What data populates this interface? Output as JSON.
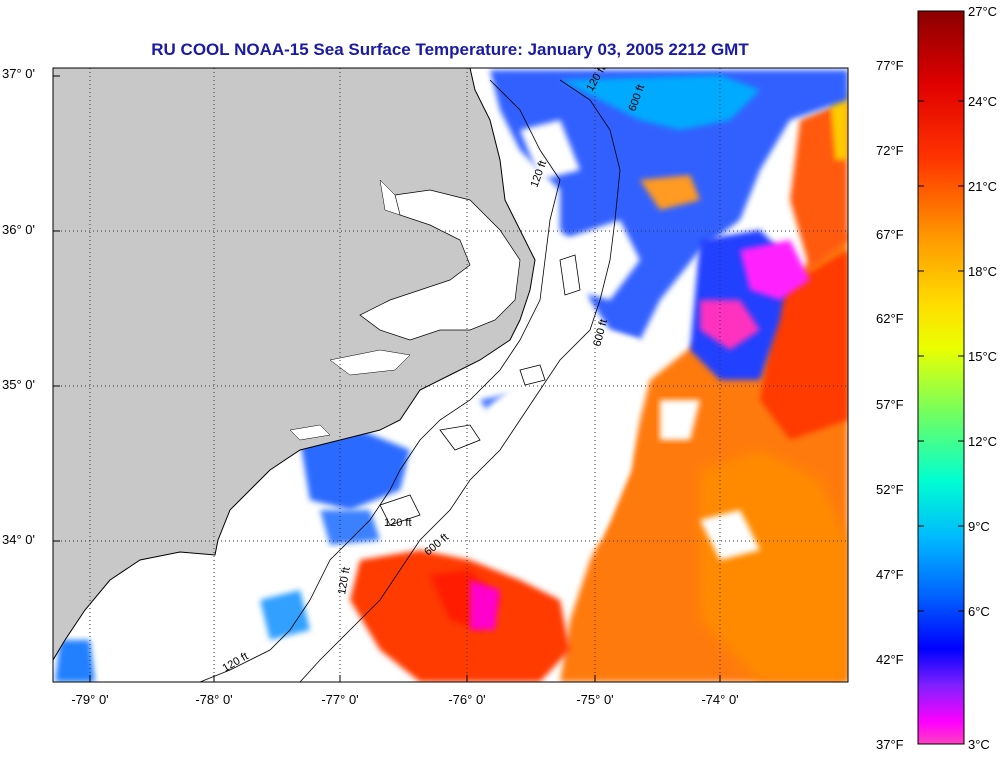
{
  "title": "RU COOL  NOAA-15  Sea Surface Temperature:  January 03, 2005 2212 GMT",
  "map": {
    "lat_ticks": [
      "37° 0'",
      "36° 0'",
      "35° 0'",
      "34° 0'"
    ],
    "lon_ticks": [
      "-79° 0'",
      "-78° 0'",
      "-77° 0'",
      "-76° 0'",
      "-75° 0'",
      "-74° 0'"
    ],
    "contour_labels": [
      "120 ft",
      "600 ft",
      "120 ft",
      "600 ft",
      "120 ft",
      "600 ft",
      "120 ft",
      "120 ft"
    ],
    "colors": {
      "land": "#c8c8c8",
      "ocean_no_data": "#ffffff",
      "grid": "#555555"
    }
  },
  "colorbar": {
    "fahrenheit_labels": [
      "77°F",
      "72°F",
      "67°F",
      "62°F",
      "57°F",
      "52°F",
      "47°F",
      "42°F",
      "37°F"
    ],
    "celsius_labels": [
      "27°C",
      "24°C",
      "21°C",
      "18°C",
      "15°C",
      "12°C",
      "9°C",
      "6°C",
      "3°C"
    ],
    "gradient_colors": [
      "#8b0000",
      "#ff2a00",
      "#ff8c00",
      "#ffd400",
      "#ffff00",
      "#b5ff3a",
      "#3cff9c",
      "#00e5ff",
      "#00a0ff",
      "#0040ff",
      "#0000ff",
      "#7a22ff",
      "#ff00ff",
      "#ff40c0"
    ]
  }
}
